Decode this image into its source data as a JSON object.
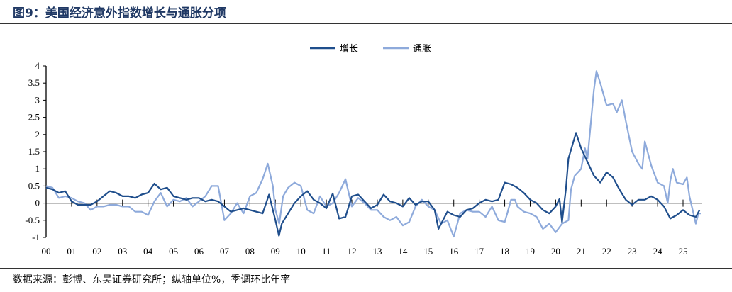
{
  "title": "图9：美国经济意外指数增长与通胀分项",
  "source": "数据来源：彭博、东吴证券研究所；纵轴单位%，季调环比年率",
  "chart_data": {
    "type": "line",
    "title": "",
    "xlabel": "",
    "ylabel": "",
    "ylim": [
      -1,
      4
    ],
    "xlim": [
      2000,
      2025.75
    ],
    "yticks": [
      "4",
      "3.5",
      "3",
      "2.5",
      "2",
      "1.5",
      "1",
      "0.5",
      "0",
      "-0.5",
      "-1"
    ],
    "ytick_values": [
      4,
      3.5,
      3,
      2.5,
      2,
      1.5,
      1,
      0.5,
      0,
      -0.5,
      -1
    ],
    "xticks": [
      "00",
      "01",
      "02",
      "03",
      "04",
      "05",
      "06",
      "07",
      "08",
      "09",
      "10",
      "11",
      "12",
      "13",
      "14",
      "15",
      "16",
      "17",
      "18",
      "19",
      "20",
      "21",
      "22",
      "23",
      "24",
      "25"
    ],
    "legend_position": "top-center",
    "grid": false,
    "series": [
      {
        "name": "增长",
        "color": "#1f4e8c",
        "x": [
          2000,
          2000.25,
          2000.5,
          2000.75,
          2001,
          2001.25,
          2001.5,
          2001.75,
          2002,
          2002.25,
          2002.5,
          2002.75,
          2003,
          2003.25,
          2003.5,
          2003.75,
          2004,
          2004.25,
          2004.5,
          2004.75,
          2005,
          2005.25,
          2005.5,
          2005.75,
          2006,
          2006.25,
          2006.5,
          2006.75,
          2007,
          2007.25,
          2007.5,
          2007.75,
          2008,
          2008.25,
          2008.5,
          2008.75,
          2009,
          2009.14,
          2009.25,
          2009.5,
          2009.75,
          2010,
          2010.25,
          2010.5,
          2010.75,
          2011,
          2011.25,
          2011.5,
          2011.75,
          2012,
          2012.25,
          2012.5,
          2012.75,
          2013,
          2013.25,
          2013.5,
          2013.75,
          2014,
          2014.25,
          2014.5,
          2014.75,
          2015,
          2015.25,
          2015.4,
          2015.75,
          2016,
          2016.25,
          2016.5,
          2016.75,
          2017,
          2017.25,
          2017.5,
          2017.75,
          2018,
          2018.25,
          2018.5,
          2018.75,
          2019,
          2019.25,
          2019.5,
          2019.75,
          2020,
          2020.15,
          2020.25,
          2020.4,
          2020.5,
          2020.8,
          2021,
          2021.25,
          2021.5,
          2021.75,
          2022,
          2022.25,
          2022.5,
          2022.75,
          2023,
          2023.25,
          2023.5,
          2023.75,
          2024,
          2024.25,
          2024.5,
          2024.75,
          2025,
          2025.25,
          2025.5,
          2025.65
        ],
        "values": [
          0.45,
          0.4,
          0.3,
          0.35,
          0.05,
          -0.05,
          -0.05,
          -0.05,
          0.05,
          0.2,
          0.35,
          0.3,
          0.2,
          0.2,
          0.15,
          0.25,
          0.3,
          0.57,
          0.4,
          0.45,
          0.2,
          0.15,
          0.1,
          0.15,
          0.15,
          0.05,
          0.1,
          0.05,
          -0.1,
          -0.25,
          -0.2,
          -0.15,
          -0.2,
          -0.25,
          -0.3,
          0.25,
          -0.5,
          -0.95,
          -0.6,
          -0.3,
          0.0,
          0.2,
          0.35,
          0.1,
          0.0,
          -0.15,
          0.28,
          -0.45,
          -0.4,
          0.2,
          0.25,
          0.05,
          -0.15,
          -0.05,
          0.25,
          0.05,
          0.0,
          -0.1,
          0.15,
          -0.05,
          0.05,
          0.05,
          -0.2,
          -0.75,
          -0.25,
          -0.35,
          -0.4,
          -0.2,
          -0.15,
          0.0,
          0.1,
          0.05,
          0.1,
          0.6,
          0.55,
          0.45,
          0.3,
          0.1,
          0.0,
          -0.2,
          -0.3,
          -0.1,
          0.12,
          -0.55,
          0.4,
          1.3,
          2.05,
          1.6,
          1.2,
          0.8,
          0.6,
          0.9,
          0.75,
          0.4,
          0.1,
          -0.05,
          0.1,
          0.1,
          0.2,
          0.1,
          -0.1,
          -0.45,
          -0.35,
          -0.2,
          -0.35,
          -0.4,
          -0.2
        ]
      },
      {
        "name": "通胀",
        "color": "#8eaadb",
        "x": [
          2000,
          2000.25,
          2000.5,
          2000.75,
          2001,
          2001.25,
          2001.5,
          2001.75,
          2002,
          2002.25,
          2002.5,
          2002.75,
          2003,
          2003.25,
          2003.5,
          2003.75,
          2004,
          2004.25,
          2004.5,
          2004.75,
          2005,
          2005.25,
          2005.5,
          2005.75,
          2006,
          2006.25,
          2006.5,
          2006.75,
          2007,
          2007.25,
          2007.5,
          2007.75,
          2008,
          2008.25,
          2008.5,
          2008.7,
          2008.9,
          2009,
          2009.15,
          2009.3,
          2009.5,
          2009.75,
          2010,
          2010.25,
          2010.5,
          2010.75,
          2011,
          2011.25,
          2011.5,
          2011.75,
          2012,
          2012.25,
          2012.5,
          2012.75,
          2013,
          2013.25,
          2013.5,
          2013.75,
          2014,
          2014.25,
          2014.5,
          2014.75,
          2015,
          2015.25,
          2015.5,
          2015.75,
          2016,
          2016.25,
          2016.5,
          2016.75,
          2017,
          2017.25,
          2017.5,
          2017.75,
          2018,
          2018.1,
          2018.25,
          2018.4,
          2018.5,
          2018.75,
          2019,
          2019.25,
          2019.5,
          2019.75,
          2020,
          2020.25,
          2020.5,
          2020.6,
          2020.75,
          2021,
          2021.15,
          2021.25,
          2021.5,
          2021.6,
          2021.75,
          2022,
          2022.25,
          2022.4,
          2022.6,
          2022.75,
          2023,
          2023.25,
          2023.4,
          2023.5,
          2023.75,
          2024,
          2024.25,
          2024.4,
          2024.5,
          2024.6,
          2024.75,
          2025,
          2025.15,
          2025.25,
          2025.5,
          2025.6,
          2025.7
        ],
        "values": [
          0.5,
          0.45,
          0.15,
          0.2,
          0.15,
          0.05,
          0.0,
          -0.2,
          -0.1,
          -0.1,
          -0.05,
          -0.05,
          -0.1,
          -0.1,
          -0.25,
          -0.25,
          -0.35,
          0.05,
          0.3,
          -0.1,
          0.1,
          0.05,
          0.15,
          -0.1,
          0.05,
          0.2,
          0.5,
          0.5,
          -0.5,
          -0.3,
          0.0,
          -0.3,
          0.2,
          0.3,
          0.7,
          1.15,
          0.5,
          -0.2,
          -0.6,
          0.2,
          0.45,
          0.6,
          0.5,
          -0.2,
          -0.3,
          0.2,
          -0.1,
          0.0,
          0.3,
          0.7,
          -0.1,
          0.15,
          0.0,
          -0.2,
          -0.2,
          -0.4,
          -0.5,
          -0.4,
          -0.65,
          -0.55,
          -0.1,
          0.1,
          -0.1,
          -0.2,
          -0.6,
          -0.5,
          -0.98,
          -0.3,
          -0.2,
          -0.25,
          -0.25,
          -0.4,
          -0.1,
          -0.5,
          -0.55,
          -0.3,
          0.1,
          0.1,
          -0.1,
          -0.25,
          -0.3,
          -0.4,
          -0.75,
          -0.6,
          -0.85,
          -0.6,
          -0.5,
          0.4,
          0.8,
          1.0,
          1.6,
          1.3,
          3.3,
          3.85,
          3.5,
          2.85,
          2.9,
          2.65,
          3.0,
          2.4,
          1.5,
          1.15,
          1.0,
          1.8,
          1.1,
          0.6,
          0.5,
          0.0,
          0.65,
          1.0,
          0.6,
          0.55,
          0.75,
          0.2,
          -0.6,
          -0.3,
          -0.3
        ]
      }
    ]
  }
}
